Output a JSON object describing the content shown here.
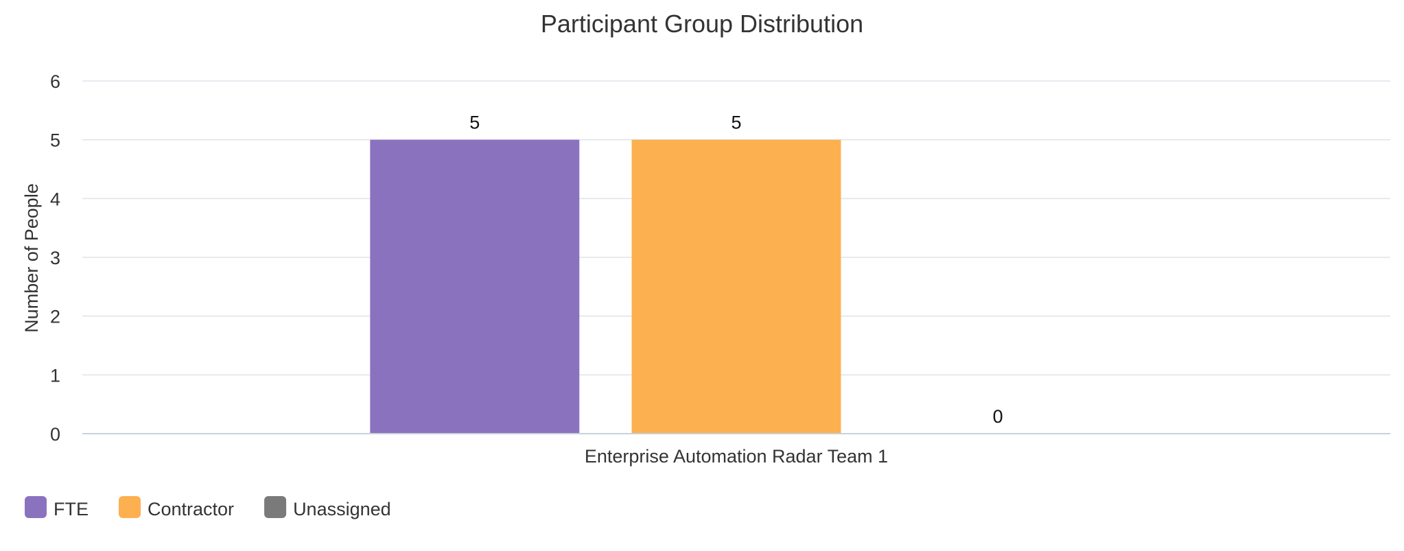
{
  "chart_data": {
    "type": "bar",
    "title": "Participant Group Distribution",
    "xlabel": "",
    "ylabel": "Number of People",
    "categories": [
      "Enterprise Automation Radar Team 1"
    ],
    "series": [
      {
        "name": "FTE",
        "values": [
          5
        ],
        "color": "#8A72BF"
      },
      {
        "name": "Contractor",
        "values": [
          5
        ],
        "color": "#FDB04F"
      },
      {
        "name": "Unassigned",
        "values": [
          0
        ],
        "color": "#7A7A7A"
      }
    ],
    "ylim": [
      0,
      6
    ],
    "yticks": [
      0,
      1,
      2,
      3,
      4,
      5,
      6
    ],
    "grid": true,
    "legend_position": "bottom-left",
    "data_labels": true
  }
}
